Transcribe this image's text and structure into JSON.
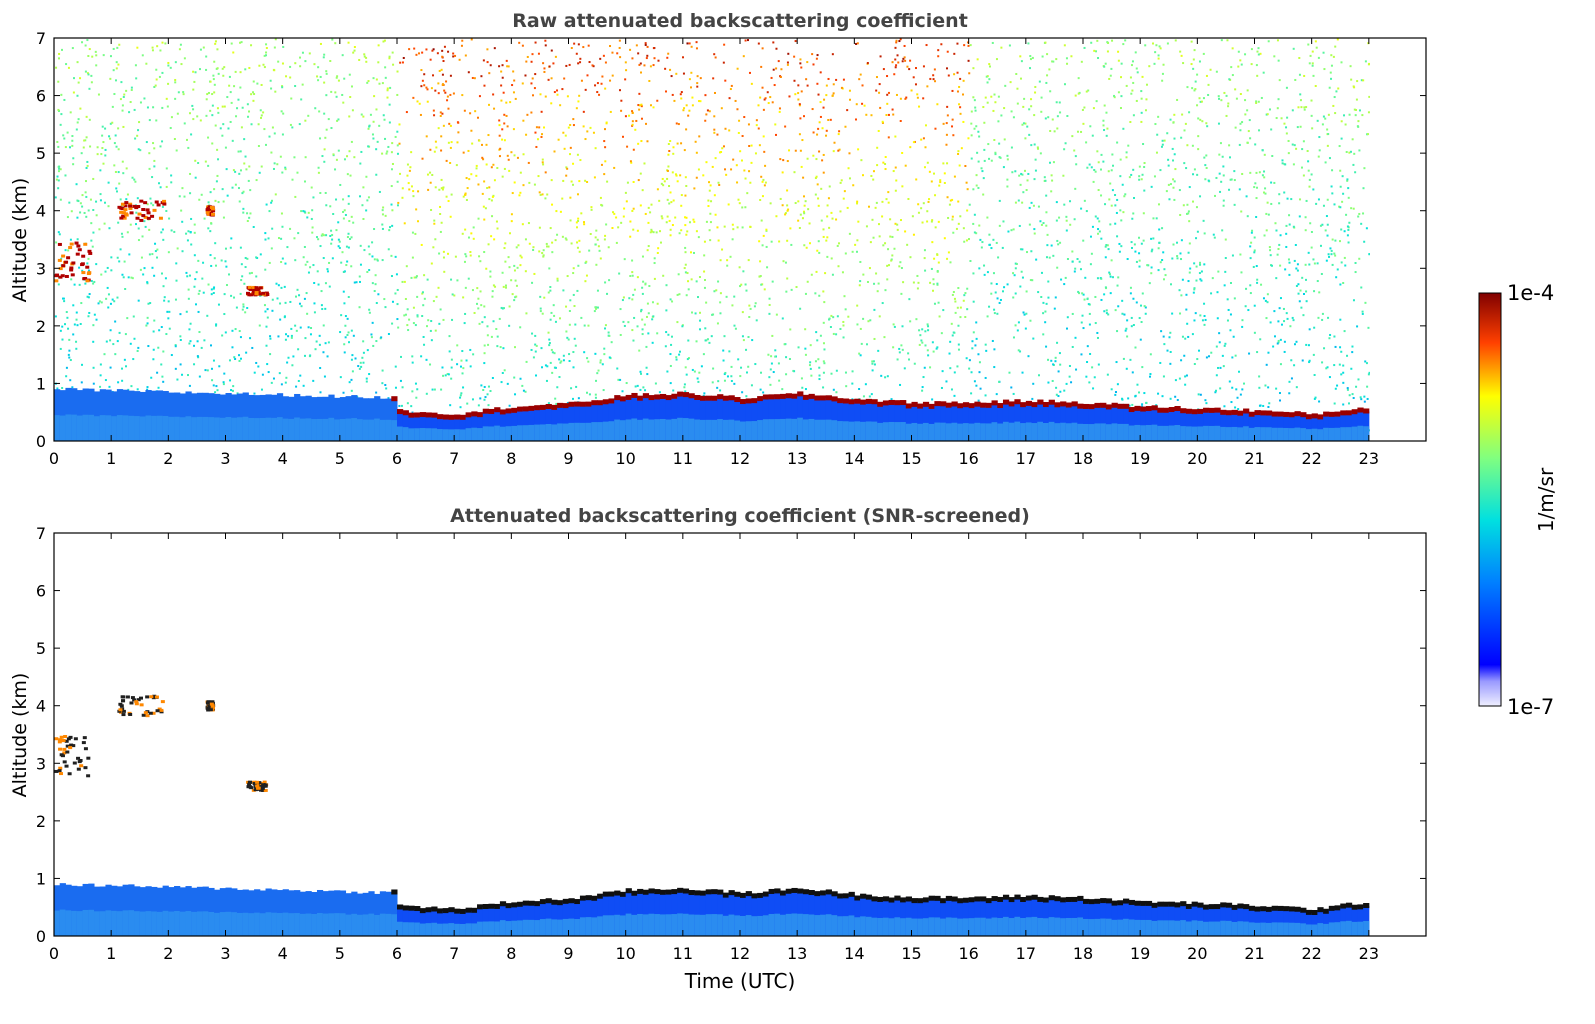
{
  "chart_data": [
    {
      "type": "heatmap",
      "title": "Raw attenuated backscattering coefficient",
      "xlabel": "",
      "ylabel": "Altitude (km)",
      "xlim": [
        0,
        24
      ],
      "ylim": [
        0,
        7
      ],
      "x_ticks": [
        "0",
        "1",
        "2",
        "3",
        "4",
        "5",
        "6",
        "7",
        "8",
        "9",
        "10",
        "11",
        "12",
        "13",
        "14",
        "15",
        "16",
        "17",
        "18",
        "19",
        "20",
        "21",
        "22",
        "23"
      ],
      "y_ticks": [
        "0",
        "1",
        "2",
        "3",
        "4",
        "5",
        "6",
        "7"
      ],
      "data_extent_hours": [
        0,
        23
      ],
      "noise": true,
      "features": {
        "boundary_layer_top_km": [
          {
            "t": 0,
            "h": 0.9
          },
          {
            "t": 2,
            "h": 0.85
          },
          {
            "t": 4,
            "h": 0.8
          },
          {
            "t": 5.9,
            "h": 0.75
          },
          {
            "t": 6.0,
            "h": 0.48
          },
          {
            "t": 7,
            "h": 0.42
          },
          {
            "t": 8,
            "h": 0.55
          },
          {
            "t": 9,
            "h": 0.6
          },
          {
            "t": 10,
            "h": 0.75
          },
          {
            "t": 11,
            "h": 0.78
          },
          {
            "t": 12,
            "h": 0.7
          },
          {
            "t": 13,
            "h": 0.78
          },
          {
            "t": 14,
            "h": 0.68
          },
          {
            "t": 15,
            "h": 0.62
          },
          {
            "t": 16,
            "h": 0.62
          },
          {
            "t": 17,
            "h": 0.65
          },
          {
            "t": 18,
            "h": 0.62
          },
          {
            "t": 19,
            "h": 0.55
          },
          {
            "t": 20,
            "h": 0.52
          },
          {
            "t": 21,
            "h": 0.48
          },
          {
            "t": 22,
            "h": 0.42
          },
          {
            "t": 23,
            "h": 0.55
          }
        ],
        "clouds": [
          {
            "t0": 1.1,
            "t1": 1.9,
            "h0": 3.85,
            "h1": 4.2
          },
          {
            "t0": 2.65,
            "t1": 2.75,
            "h0": 3.95,
            "h1": 4.1
          },
          {
            "t0": 0.0,
            "t1": 0.6,
            "h0": 2.8,
            "h1": 3.5
          },
          {
            "t0": 3.35,
            "t1": 3.7,
            "h0": 2.55,
            "h1": 2.7
          }
        ]
      }
    },
    {
      "type": "heatmap",
      "title": "Attenuated backscattering coefficient (SNR-screened)",
      "xlabel": "Time (UTC)",
      "ylabel": "Altitude (km)",
      "xlim": [
        0,
        24
      ],
      "ylim": [
        0,
        7
      ],
      "x_ticks": [
        "0",
        "1",
        "2",
        "3",
        "4",
        "5",
        "6",
        "7",
        "8",
        "9",
        "10",
        "11",
        "12",
        "13",
        "14",
        "15",
        "16",
        "17",
        "18",
        "19",
        "20",
        "21",
        "22",
        "23"
      ],
      "y_ticks": [
        "0",
        "1",
        "2",
        "3",
        "4",
        "5",
        "6",
        "7"
      ],
      "data_extent_hours": [
        0,
        23
      ],
      "noise": false
    }
  ],
  "colorbar": {
    "label": "1/m/sr",
    "max_label": "1e-4",
    "min_label": "1e-7",
    "colormap": "jet-with-white-low-end"
  }
}
